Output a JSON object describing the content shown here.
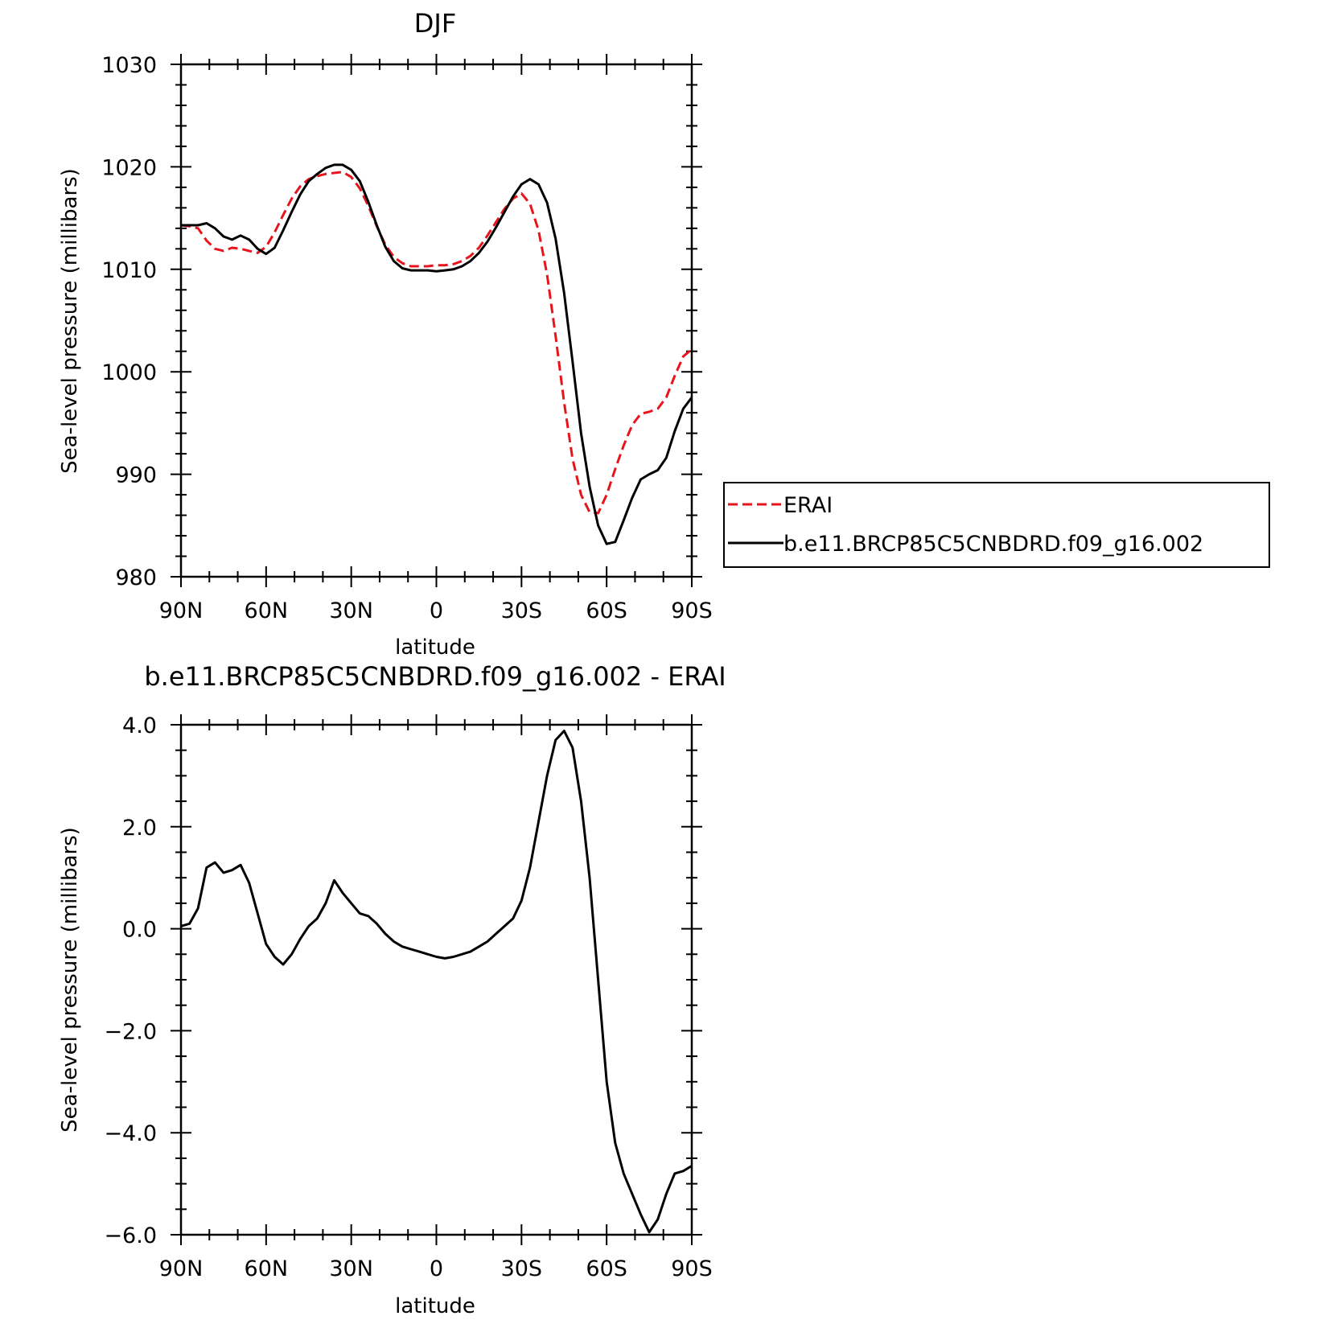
{
  "colors": {
    "erai": "#e8141c",
    "model": "#000000",
    "axis": "#000000",
    "background": "#ffffff"
  },
  "chart_data": [
    {
      "type": "line",
      "title": "DJF",
      "xlabel": "latitude",
      "ylabel": "Sea-level pressure (millibars)",
      "x_direction": "north-to-south",
      "xlim": [
        90,
        -90
      ],
      "ylim": [
        980,
        1030
      ],
      "xticks": [
        90,
        60,
        30,
        0,
        -30,
        -60,
        -90
      ],
      "xtick_labels": [
        "90N",
        "60N",
        "30N",
        "0",
        "30S",
        "60S",
        "90S"
      ],
      "yticks": [
        980,
        990,
        1000,
        1010,
        1020,
        1030
      ],
      "ytick_labels": [
        "980",
        "990",
        "1000",
        "1010",
        "1020",
        "1030"
      ],
      "grid": false,
      "legend": {
        "placement": "right",
        "entries": [
          "ERAI",
          "b.e11.BRCP85C5CNBDRD.f09_g16.002"
        ]
      },
      "x": [
        90,
        87,
        84,
        81,
        78,
        75,
        72,
        69,
        66,
        63,
        60,
        57,
        54,
        51,
        48,
        45,
        42,
        39,
        36,
        33,
        30,
        27,
        24,
        21,
        18,
        15,
        12,
        9,
        6,
        3,
        0,
        -3,
        -6,
        -9,
        -12,
        -15,
        -18,
        -21,
        -24,
        -27,
        -30,
        -33,
        -36,
        -39,
        -42,
        -45,
        -48,
        -51,
        -54,
        -57,
        -60,
        -63,
        -66,
        -69,
        -72,
        -75,
        -78,
        -81,
        -84,
        -87,
        -90
      ],
      "series": [
        {
          "name": "ERAI",
          "color": "#e8141c",
          "dash": "dashed",
          "values": [
            1014.3,
            1014.2,
            1014.0,
            1012.8,
            1012.0,
            1011.8,
            1012.1,
            1012.0,
            1011.8,
            1011.6,
            1012.2,
            1013.6,
            1015.3,
            1016.9,
            1018.1,
            1018.8,
            1019.1,
            1019.3,
            1019.4,
            1019.5,
            1019.0,
            1017.9,
            1016.2,
            1014.2,
            1012.4,
            1011.2,
            1010.6,
            1010.3,
            1010.3,
            1010.3,
            1010.4,
            1010.4,
            1010.5,
            1010.8,
            1011.3,
            1012.1,
            1013.3,
            1014.6,
            1015.9,
            1016.9,
            1017.4,
            1016.4,
            1013.8,
            1009.5,
            1003.5,
            997.0,
            991.5,
            988.0,
            986.3,
            986.2,
            988.0,
            990.5,
            992.8,
            994.8,
            995.9,
            996.1,
            996.4,
            997.5,
            999.6,
            1001.5,
            1002.2
          ]
        },
        {
          "name": "b.e11.BRCP85C5CNBDRD.f09_g16.002",
          "color": "#000000",
          "dash": "solid",
          "values": [
            1014.3,
            1014.3,
            1014.3,
            1014.5,
            1014.0,
            1013.2,
            1012.9,
            1013.3,
            1012.9,
            1012.0,
            1011.5,
            1012.1,
            1013.8,
            1015.6,
            1017.3,
            1018.6,
            1019.3,
            1019.9,
            1020.2,
            1020.2,
            1019.7,
            1018.6,
            1016.6,
            1014.3,
            1012.2,
            1010.8,
            1010.1,
            1009.9,
            1009.9,
            1009.9,
            1009.8,
            1009.9,
            1010.0,
            1010.3,
            1010.8,
            1011.6,
            1012.7,
            1014.1,
            1015.6,
            1017.1,
            1018.3,
            1018.8,
            1018.3,
            1016.5,
            1013.0,
            1007.7,
            1001.0,
            994.0,
            988.8,
            985.0,
            983.2,
            983.4,
            985.5,
            987.7,
            989.5,
            990.0,
            990.4,
            991.6,
            994.2,
            996.4,
            997.5
          ]
        }
      ]
    },
    {
      "type": "line",
      "title": "b.e11.BRCP85C5CNBDRD.f09_g16.002 - ERAI",
      "xlabel": "latitude",
      "ylabel": "Sea-level pressure (millibars)",
      "x_direction": "north-to-south",
      "xlim": [
        90,
        -90
      ],
      "ylim": [
        -6.0,
        4.0
      ],
      "xticks": [
        90,
        60,
        30,
        0,
        -30,
        -60,
        -90
      ],
      "xtick_labels": [
        "90N",
        "60N",
        "30N",
        "0",
        "30S",
        "60S",
        "90S"
      ],
      "yticks": [
        -6.0,
        -4.0,
        -2.0,
        0.0,
        2.0,
        4.0
      ],
      "ytick_labels": [
        "−6.0",
        "−4.0",
        "−2.0",
        "0.0",
        "2.0",
        "4.0"
      ],
      "grid": false,
      "x": [
        90,
        87,
        84,
        81,
        78,
        75,
        72,
        69,
        66,
        63,
        60,
        57,
        54,
        51,
        48,
        45,
        42,
        39,
        36,
        33,
        30,
        27,
        24,
        21,
        18,
        15,
        12,
        9,
        6,
        3,
        0,
        -3,
        -6,
        -9,
        -12,
        -15,
        -18,
        -21,
        -24,
        -27,
        -30,
        -33,
        -36,
        -39,
        -42,
        -45,
        -48,
        -51,
        -54,
        -57,
        -60,
        -63,
        -66,
        -69,
        -72,
        -75,
        -78,
        -81,
        -84,
        -87,
        -90
      ],
      "series": [
        {
          "color": "#000000",
          "dash": "solid",
          "values": [
            0.05,
            0.1,
            0.4,
            1.2,
            1.3,
            1.1,
            1.15,
            1.25,
            0.9,
            0.3,
            -0.3,
            -0.55,
            -0.7,
            -0.5,
            -0.2,
            0.05,
            0.2,
            0.5,
            0.95,
            0.7,
            0.5,
            0.3,
            0.25,
            0.1,
            -0.1,
            -0.25,
            -0.35,
            -0.4,
            -0.45,
            -0.5,
            -0.55,
            -0.58,
            -0.55,
            -0.5,
            -0.45,
            -0.35,
            -0.25,
            -0.1,
            0.05,
            0.2,
            0.55,
            1.2,
            2.1,
            3.0,
            3.7,
            3.88,
            3.55,
            2.5,
            1.0,
            -1.0,
            -3.0,
            -4.2,
            -4.8,
            -5.2,
            -5.6,
            -5.95,
            -5.7,
            -5.2,
            -4.8,
            -4.75,
            -4.65
          ]
        }
      ]
    }
  ]
}
